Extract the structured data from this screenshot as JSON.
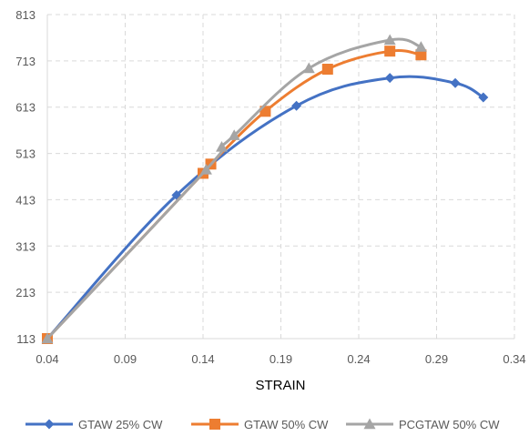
{
  "chart_data": {
    "type": "line",
    "xlabel": "STRAIN",
    "ylabel": "",
    "xlim": [
      0.04,
      0.34
    ],
    "ylim": [
      113,
      813
    ],
    "x_ticks": [
      "0.04",
      "0.09",
      "0.14",
      "0.19",
      "0.24",
      "0.29",
      "0.34"
    ],
    "y_ticks": [
      "113",
      "213",
      "313",
      "413",
      "513",
      "613",
      "713",
      "813"
    ],
    "grid": "dashed",
    "legend_position": "bottom",
    "series": [
      {
        "name": "GTAW 25% CW",
        "color": "#4472C4",
        "marker": "diamond",
        "points": [
          [
            0.04,
            113
          ],
          [
            0.123,
            423
          ],
          [
            0.2,
            616
          ],
          [
            0.26,
            676
          ],
          [
            0.302,
            665
          ],
          [
            0.32,
            634
          ]
        ]
      },
      {
        "name": "GTAW 50% CW",
        "color": "#ED7D31",
        "marker": "square",
        "points": [
          [
            0.04,
            113
          ],
          [
            0.14,
            470
          ],
          [
            0.145,
            490
          ],
          [
            0.18,
            604
          ],
          [
            0.22,
            695
          ],
          [
            0.26,
            734
          ],
          [
            0.28,
            726
          ]
        ]
      },
      {
        "name": "PCGTAW 50% CW",
        "color": "#A5A5A5",
        "marker": "triangle",
        "points": [
          [
            0.04,
            113
          ],
          [
            0.142,
            478
          ],
          [
            0.152,
            527
          ],
          [
            0.16,
            552
          ],
          [
            0.208,
            697
          ],
          [
            0.26,
            758
          ],
          [
            0.28,
            743
          ]
        ]
      }
    ]
  }
}
